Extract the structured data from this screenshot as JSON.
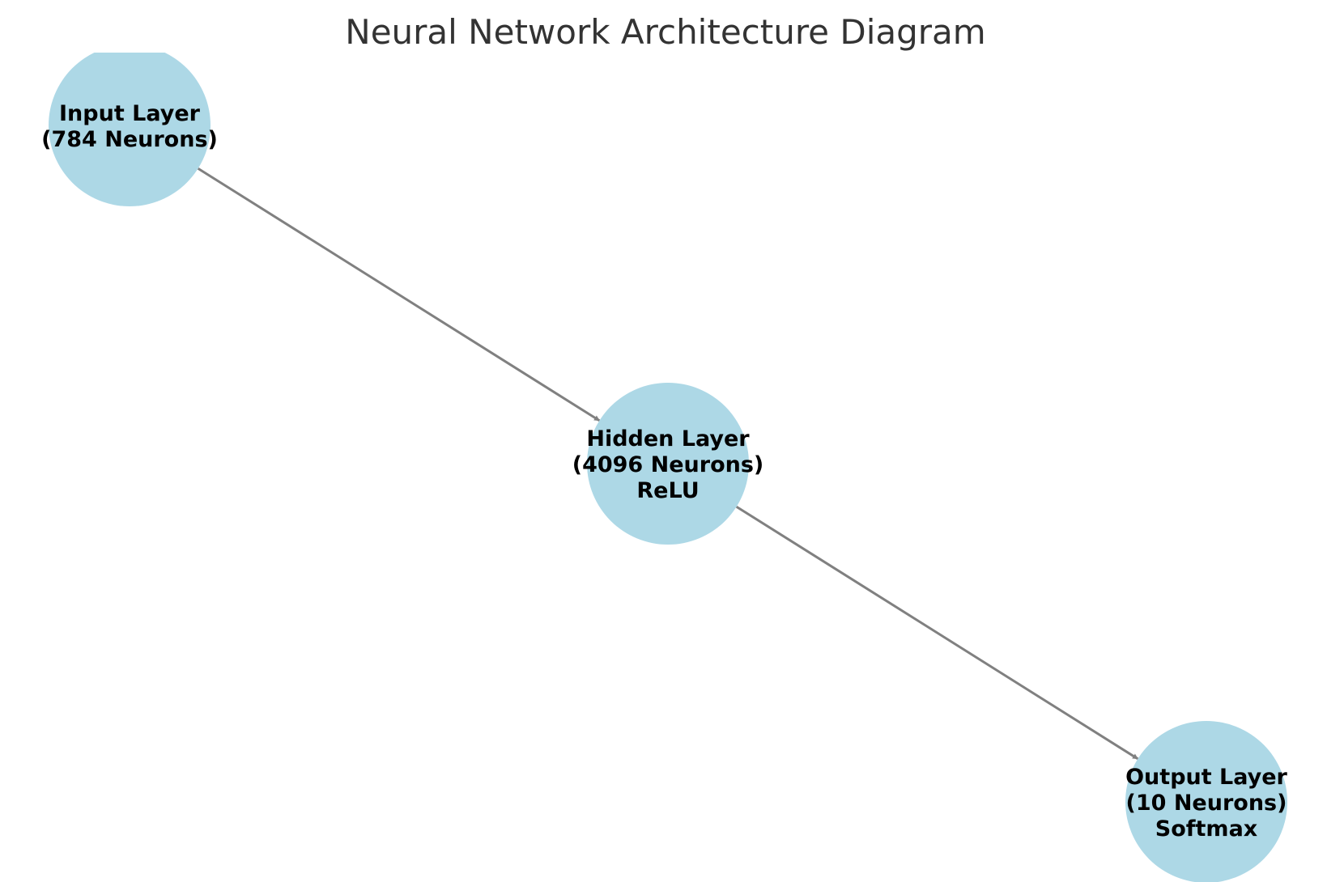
{
  "title": "Neural Network Architecture Diagram",
  "colors": {
    "node_fill": "#add8e6",
    "edge": "#808080",
    "title_text": "#333333",
    "label_text": "#000000",
    "background": "#ffffff"
  },
  "nodes": [
    {
      "id": "input",
      "lines": [
        "Input Layer",
        "(784 Neurons)"
      ]
    },
    {
      "id": "hidden",
      "lines": [
        "Hidden Layer",
        "(4096 Neurons)",
        "ReLU"
      ]
    },
    {
      "id": "output",
      "lines": [
        "Output Layer",
        "(10 Neurons)",
        "Softmax"
      ]
    }
  ],
  "edges": [
    {
      "from": "input",
      "to": "hidden"
    },
    {
      "from": "hidden",
      "to": "output"
    }
  ]
}
